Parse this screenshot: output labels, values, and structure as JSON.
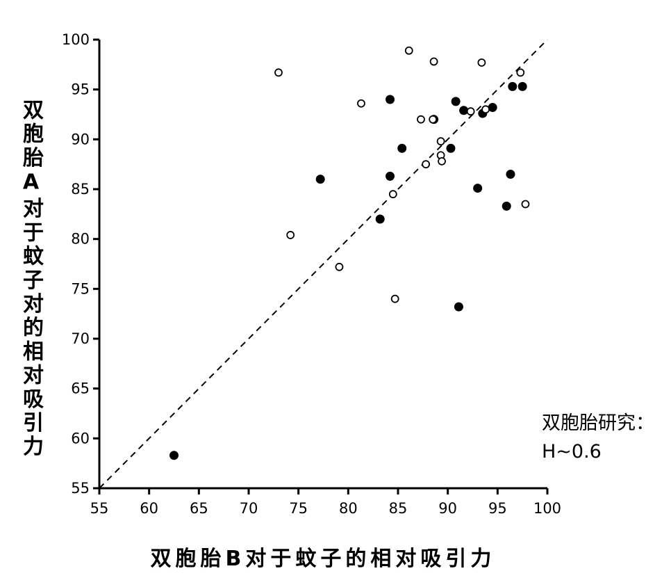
{
  "chart_data": {
    "type": "scatter",
    "title": "",
    "xlabel": "双胞胎B对于蚊子的相对吸引力",
    "ylabel": "双胞胎A对于蚊子对的相对吸引力",
    "xlim": [
      55,
      100
    ],
    "ylim": [
      55,
      100
    ],
    "xticks": [
      55,
      60,
      65,
      70,
      75,
      80,
      85,
      90,
      95,
      100
    ],
    "yticks": [
      55,
      60,
      65,
      70,
      75,
      80,
      85,
      90,
      95,
      100
    ],
    "grid": false,
    "reference_line": {
      "style": "dashed",
      "from": [
        55,
        55
      ],
      "to": [
        100,
        100
      ]
    },
    "series": [
      {
        "marker": "filled-circle",
        "points": [
          [
            62.5,
            58.3
          ],
          [
            77.2,
            86.0
          ],
          [
            83.2,
            82.0
          ],
          [
            84.2,
            94.0
          ],
          [
            84.2,
            86.3
          ],
          [
            85.4,
            89.1
          ],
          [
            88.6,
            92.0
          ],
          [
            90.3,
            89.1
          ],
          [
            90.8,
            93.8
          ],
          [
            91.1,
            73.2
          ],
          [
            91.6,
            92.9
          ],
          [
            93.0,
            85.1
          ],
          [
            93.5,
            92.6
          ],
          [
            94.5,
            93.2
          ],
          [
            95.9,
            83.3
          ],
          [
            96.3,
            86.5
          ],
          [
            96.5,
            95.3
          ],
          [
            97.5,
            95.3
          ]
        ]
      },
      {
        "marker": "open-circle",
        "points": [
          [
            73.0,
            96.7
          ],
          [
            74.2,
            80.4
          ],
          [
            79.1,
            77.2
          ],
          [
            81.3,
            93.6
          ],
          [
            84.5,
            84.5
          ],
          [
            84.7,
            74.0
          ],
          [
            86.1,
            98.9
          ],
          [
            87.3,
            92.0
          ],
          [
            87.8,
            87.5
          ],
          [
            88.5,
            92.0
          ],
          [
            88.6,
            97.8
          ],
          [
            89.3,
            89.8
          ],
          [
            89.3,
            88.4
          ],
          [
            89.4,
            87.8
          ],
          [
            92.3,
            92.8
          ],
          [
            93.4,
            97.7
          ],
          [
            93.8,
            93.0
          ],
          [
            97.3,
            96.7
          ],
          [
            97.8,
            83.5
          ]
        ]
      }
    ]
  },
  "annotation": {
    "line1": "双胞胎研究：",
    "line2": "H~0.6"
  }
}
